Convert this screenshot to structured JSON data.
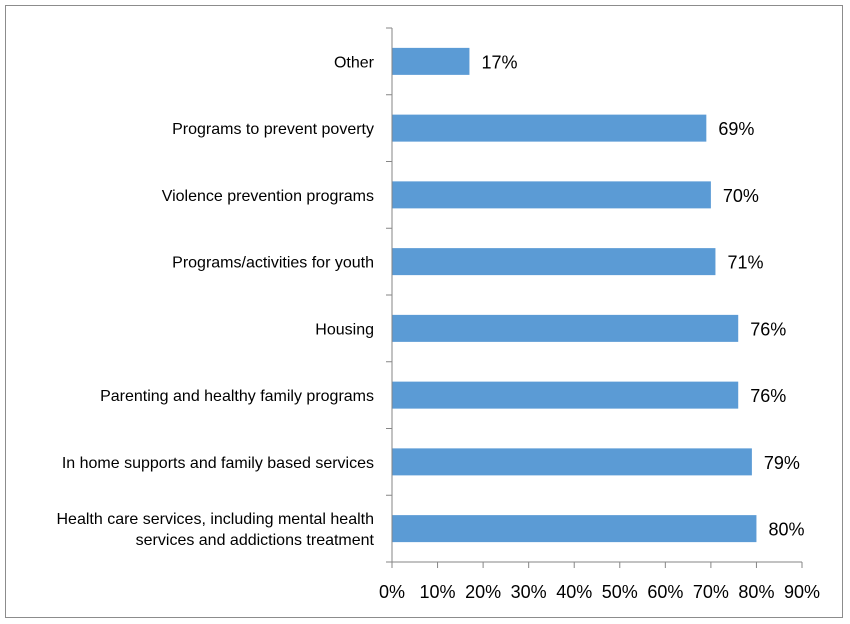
{
  "chart_data": {
    "type": "bar",
    "orientation": "horizontal",
    "categories": [
      [
        "Other"
      ],
      [
        "Programs to prevent poverty"
      ],
      [
        "Violence prevention programs"
      ],
      [
        "Programs/activities for youth"
      ],
      [
        "Housing"
      ],
      [
        "Parenting and healthy family programs"
      ],
      [
        "In home supports and family based services"
      ],
      [
        "Health care services, including mental health",
        "services and addictions treatment"
      ]
    ],
    "values": [
      17,
      69,
      70,
      71,
      76,
      76,
      79,
      80
    ],
    "value_labels": [
      "17%",
      "69%",
      "70%",
      "71%",
      "76%",
      "76%",
      "79%",
      "80%"
    ],
    "xlim": [
      0,
      90
    ],
    "xticks": [
      0,
      10,
      20,
      30,
      40,
      50,
      60,
      70,
      80,
      90
    ],
    "xtick_labels": [
      "0%",
      "10%",
      "20%",
      "30%",
      "40%",
      "50%",
      "60%",
      "70%",
      "80%",
      "90%"
    ],
    "bar_color": "#5b9bd5",
    "axis_color": "#868686",
    "grid": false,
    "legend": "none"
  }
}
